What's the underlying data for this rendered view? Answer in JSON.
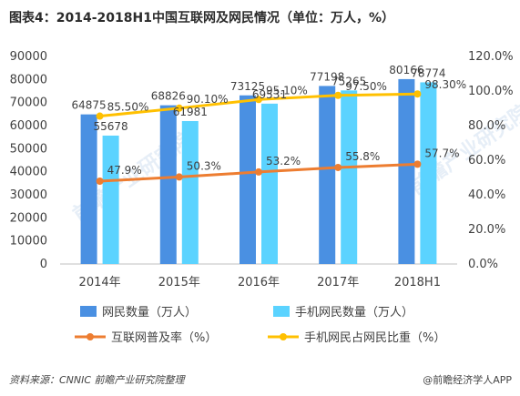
{
  "title": "图表4：2014-2018H1中国互联网及网民情况（单位：万人，%）",
  "footer": {
    "source": "资料来源：CNNIC  前瞻产业研究院整理",
    "brand": "@前瞻经济学人APP"
  },
  "watermark": "前瞻产业研究院",
  "colors": {
    "bar1": "#4a90e2",
    "bar2": "#5bd3ff",
    "line1": "#ed7d31",
    "line2": "#ffc000"
  },
  "chart_data": {
    "type": "bar",
    "categories": [
      "2014年",
      "2015年",
      "2016年",
      "2017年",
      "2018H1"
    ],
    "series": [
      {
        "name": "网民数量（万人）",
        "type": "bar",
        "axis": "left",
        "values": [
          64875,
          68826,
          73125,
          77198,
          80166
        ],
        "labels": [
          "64875",
          "68826",
          "73125",
          "77198",
          "80166"
        ]
      },
      {
        "name": "手机网民数量（万人）",
        "type": "bar",
        "axis": "left",
        "values": [
          55678,
          61981,
          69531,
          75265,
          78774
        ],
        "labels": [
          "55678",
          "61981",
          "69531",
          "75265",
          "78774"
        ]
      },
      {
        "name": "互联网普及率（%）",
        "type": "line",
        "axis": "right",
        "values": [
          47.9,
          50.3,
          53.2,
          55.8,
          57.7
        ],
        "labels": [
          "47.9%",
          "50.3%",
          "53.2%",
          "55.8%",
          "57.7%"
        ]
      },
      {
        "name": "手机网民占网民比重（%）",
        "type": "line",
        "axis": "right",
        "values": [
          85.5,
          90.1,
          95.1,
          97.5,
          98.3
        ],
        "labels": [
          "85.50%",
          "90.10%",
          "95.10%",
          "97.50%",
          "98.30%"
        ]
      }
    ],
    "y_left": {
      "range": [
        0,
        90000
      ],
      "ticks": [
        "0",
        "10000",
        "20000",
        "30000",
        "40000",
        "50000",
        "60000",
        "70000",
        "80000",
        "90000"
      ]
    },
    "y_right": {
      "range": [
        0,
        120
      ],
      "ticks": [
        "0.0%",
        "20.0%",
        "40.0%",
        "60.0%",
        "80.0%",
        "100.0%",
        "120.0%"
      ]
    },
    "grid": false,
    "legend_position": "bottom"
  }
}
